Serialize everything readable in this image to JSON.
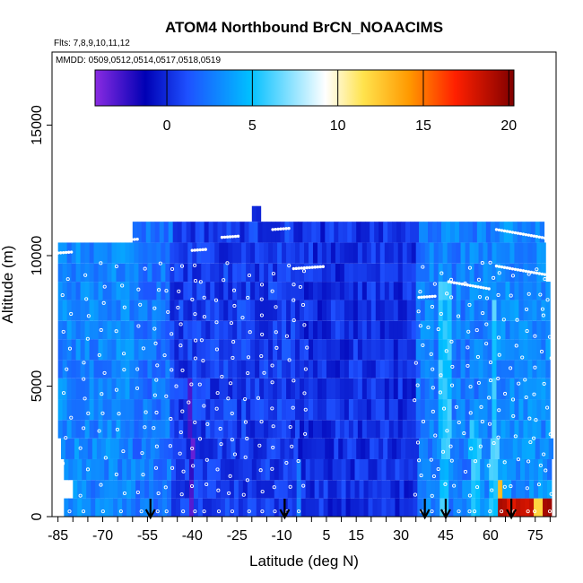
{
  "chart_data": {
    "type": "heatmap",
    "title": "ATOM4 Northbound BrCN_NOAACIMS",
    "flights_label": "Flts: 7,8,9,10,11,12",
    "dates_label": "MMDD: 0509,0512,0514,0517,0518,0519",
    "xlabel": "Latitude (deg N)",
    "ylabel": "Altitude (m)",
    "x_ticks": [
      "-85",
      "-70",
      "-55",
      "-40",
      "-25",
      "-10",
      "5",
      "15",
      "30",
      "45",
      "60",
      "75"
    ],
    "x_tick_values": [
      -85,
      -70,
      -55,
      -40,
      -25,
      -10,
      5,
      15,
      30,
      45,
      60,
      75
    ],
    "y_ticks": [
      "0",
      "5000",
      "10000",
      "15000"
    ],
    "y_tick_values": [
      0,
      5000,
      10000,
      15000
    ],
    "xlim": [
      -87,
      82
    ],
    "ylim": [
      0,
      17800
    ],
    "colorbar": {
      "ticks": [
        "0",
        "5",
        "10",
        "15",
        "20"
      ],
      "tick_values": [
        0,
        5,
        10,
        15,
        20
      ],
      "range": [
        -4.2,
        20.3
      ],
      "colors": [
        "#8a2be2",
        "#0000c8",
        "#1e64ff",
        "#00c0ff",
        "#ffffff",
        "#ffe000",
        "#ff6000",
        "#ff0000",
        "#8b0000"
      ]
    },
    "profile_arrows_lat": [
      -54,
      -9,
      38,
      45,
      67
    ],
    "altitude_bands_m": [
      {
        "alt": 300,
        "x": [
          -83,
          80
        ],
        "level": "low-blue",
        "hot_lat": [
          62,
          80
        ],
        "hot_value": 18
      },
      {
        "alt": 1250,
        "x": [
          -80,
          80
        ],
        "level": "blue"
      },
      {
        "alt": 2500,
        "x": [
          -83,
          80
        ],
        "level": "blue"
      },
      {
        "alt": 4000,
        "x": [
          -85,
          80
        ],
        "level": "blue"
      },
      {
        "alt": 5500,
        "x": [
          -85,
          80
        ],
        "level": "blue"
      },
      {
        "alt": 7000,
        "x": [
          -85,
          79
        ],
        "level": "blue"
      },
      {
        "alt": 8500,
        "x": [
          -85,
          79
        ],
        "level": "blue"
      },
      {
        "alt": 9800,
        "x": [
          -85,
          78
        ],
        "level": "blue"
      },
      {
        "alt": 10800,
        "x": [
          -60,
          78
        ],
        "level": "blue"
      },
      {
        "alt": 11600,
        "x": [
          -20,
          -17
        ],
        "level": "blue"
      }
    ],
    "grid": false
  }
}
